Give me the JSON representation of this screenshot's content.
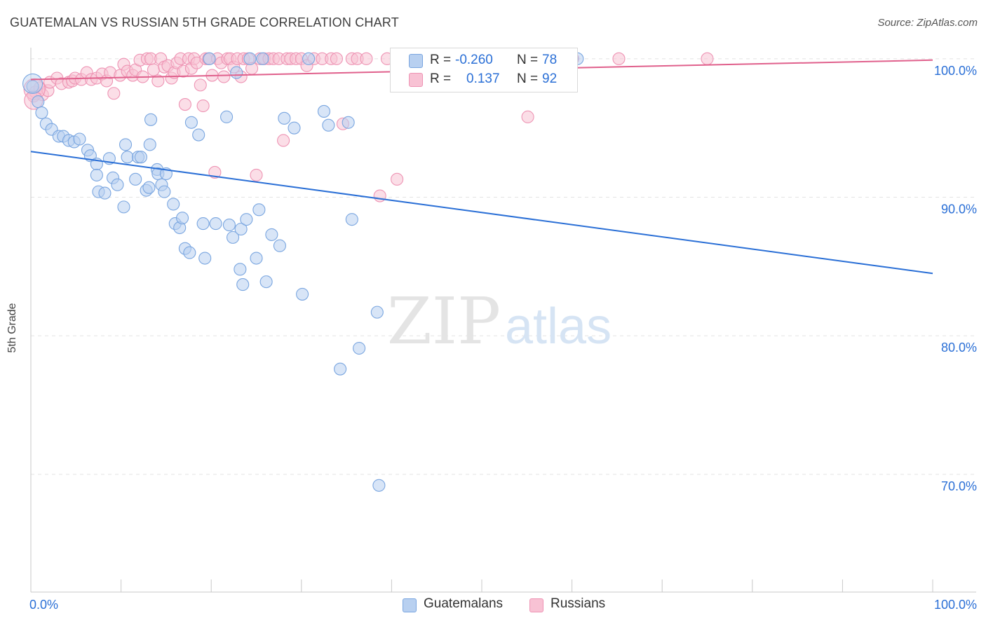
{
  "title": "GUATEMALAN VS RUSSIAN 5TH GRADE CORRELATION CHART",
  "source": "Source: ZipAtlas.com",
  "watermark": {
    "zip": "ZIP",
    "atlas": "atlas"
  },
  "legend": {
    "rows": [
      {
        "r_label": "R =",
        "r_value": "-0.260",
        "n_label": "N =",
        "n_value": "78"
      },
      {
        "r_label": "R =",
        "r_value": "0.137",
        "n_label": "N =",
        "n_value": "92"
      }
    ]
  },
  "chart_data": {
    "type": "scatter",
    "title": "GUATEMALAN VS RUSSIAN 5TH GRADE CORRELATION CHART",
    "xlabel": "",
    "ylabel": "5th Grade",
    "xlim": [
      0,
      100
    ],
    "ylim": [
      61.5,
      100.8
    ],
    "x_tick_labels": [
      "0.0%",
      "100.0%"
    ],
    "y_ticks": [
      70,
      80,
      90,
      100
    ],
    "y_tick_labels": [
      "70.0%",
      "80.0%",
      "90.0%",
      "100.0%"
    ],
    "grid": true,
    "legend_position": "top-center",
    "colors": {
      "Guatemalans": {
        "fill": "#b8d0f0",
        "stroke": "#7aa6e0",
        "line": "#2a6fd6"
      },
      "Russians": {
        "fill": "#f8c2d4",
        "stroke": "#ee94b4",
        "line": "#e0608c"
      }
    },
    "series": [
      {
        "name": "Guatemalans",
        "r": -0.26,
        "n": 78,
        "trend": {
          "x": [
            0,
            100
          ],
          "y": [
            93.3,
            84.5
          ]
        },
        "x": [
          0.2,
          0.8,
          1.2,
          1.7,
          2.3,
          3.1,
          3.6,
          4.2,
          4.8,
          5.4,
          6.3,
          6.6,
          7.3,
          7.3,
          7.5,
          8.2,
          8.7,
          9.1,
          9.6,
          10.3,
          10.5,
          10.7,
          11.6,
          11.9,
          12.2,
          12.8,
          13.1,
          13.2,
          13.3,
          14.0,
          14.1,
          14.5,
          14.8,
          15.0,
          15.8,
          16.0,
          16.5,
          16.8,
          17.1,
          17.6,
          17.8,
          18.6,
          19.1,
          19.3,
          19.8,
          20.5,
          21.7,
          22.0,
          22.4,
          22.8,
          23.2,
          23.3,
          23.5,
          23.9,
          24.3,
          25.0,
          25.3,
          25.7,
          26.1,
          26.7,
          27.6,
          28.1,
          29.2,
          30.1,
          30.8,
          32.5,
          33.0,
          34.3,
          35.2,
          35.6,
          36.4,
          38.4,
          38.6,
          43.6,
          45.6,
          46.9,
          60.0,
          60.6
        ],
        "y": [
          98.0,
          96.9,
          96.1,
          95.3,
          94.9,
          94.4,
          94.4,
          94.1,
          94.0,
          94.2,
          93.4,
          93.0,
          92.4,
          91.6,
          90.4,
          90.3,
          92.8,
          91.4,
          90.9,
          89.3,
          93.8,
          92.9,
          91.3,
          92.9,
          92.9,
          90.5,
          90.7,
          93.8,
          95.6,
          92.0,
          91.7,
          90.9,
          90.4,
          91.7,
          89.5,
          88.1,
          87.8,
          88.5,
          86.3,
          86.0,
          95.4,
          94.5,
          88.1,
          85.6,
          100.0,
          88.1,
          95.8,
          88.0,
          87.1,
          99.0,
          84.8,
          87.7,
          83.7,
          88.4,
          100.0,
          85.6,
          89.1,
          100.0,
          83.9,
          87.3,
          86.5,
          95.7,
          95.0,
          83.0,
          100.0,
          96.2,
          95.2,
          77.6,
          95.4,
          88.4,
          79.1,
          81.7,
          69.2,
          100.0,
          100.0,
          100.0,
          100.0,
          100.0
        ]
      },
      {
        "name": "Russians",
        "r": 0.137,
        "n": 92,
        "trend": {
          "x": [
            0,
            100
          ],
          "y": [
            98.5,
            99.9
          ]
        },
        "x": [
          0.3,
          0.5,
          1.0,
          1.3,
          1.9,
          2.1,
          2.9,
          3.4,
          4.2,
          4.6,
          4.9,
          5.6,
          6.2,
          6.7,
          7.3,
          7.9,
          8.4,
          8.8,
          9.2,
          9.9,
          10.3,
          10.7,
          11.3,
          11.6,
          12.1,
          12.4,
          12.9,
          13.3,
          13.6,
          14.1,
          14.4,
          14.8,
          15.2,
          15.6,
          15.9,
          16.2,
          16.6,
          16.9,
          17.1,
          17.5,
          17.8,
          18.1,
          18.4,
          18.8,
          19.1,
          19.4,
          19.7,
          20.1,
          20.4,
          20.7,
          21.1,
          21.4,
          21.8,
          22.1,
          22.5,
          22.9,
          23.3,
          23.6,
          24.1,
          24.5,
          25.0,
          25.4,
          25.9,
          26.4,
          26.9,
          27.5,
          28.0,
          28.4,
          28.8,
          29.4,
          30.0,
          30.6,
          31.4,
          32.3,
          33.3,
          33.9,
          34.6,
          35.6,
          36.2,
          37.2,
          38.7,
          39.5,
          40.6,
          41.9,
          42.7,
          44.5,
          46.2,
          55.1,
          57.3,
          60.1,
          65.2,
          75.0
        ],
        "y": [
          97.3,
          97.6,
          97.9,
          97.4,
          97.7,
          98.3,
          98.6,
          98.2,
          98.3,
          98.4,
          98.6,
          98.5,
          99.0,
          98.5,
          98.6,
          98.9,
          98.4,
          99.0,
          97.5,
          98.8,
          99.6,
          99.1,
          98.8,
          99.2,
          99.9,
          98.7,
          100.0,
          100.0,
          99.2,
          98.4,
          100.0,
          99.4,
          99.5,
          98.6,
          99.0,
          99.7,
          100.0,
          99.1,
          96.7,
          100.0,
          99.3,
          100.0,
          99.7,
          98.1,
          96.6,
          100.0,
          100.0,
          98.8,
          91.8,
          100.0,
          99.7,
          98.7,
          100.0,
          100.0,
          99.4,
          100.0,
          98.7,
          100.0,
          100.0,
          99.3,
          91.6,
          100.0,
          100.0,
          100.0,
          100.0,
          100.0,
          94.1,
          100.0,
          100.0,
          100.0,
          100.0,
          99.5,
          100.0,
          100.0,
          100.0,
          100.0,
          95.3,
          100.0,
          100.0,
          100.0,
          90.1,
          100.0,
          91.3,
          100.0,
          100.0,
          100.0,
          100.0,
          95.8,
          100.0,
          100.0,
          100.0,
          100.0
        ]
      }
    ]
  }
}
